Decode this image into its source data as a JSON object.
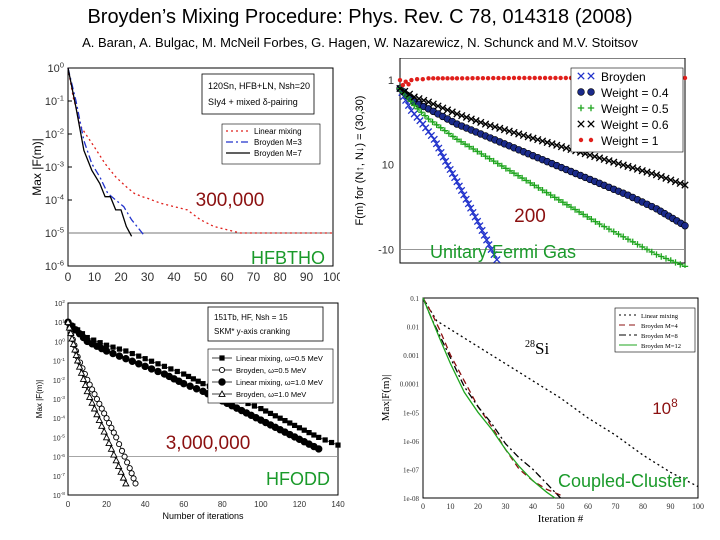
{
  "header": {
    "title": "Broyden’s Mixing Procedure: Phys. Rev. C 78, 014318 (2008)",
    "authors": "A. Baran, A. Bulgac, M. McNeil Forbes, G. Hagen, W. Nazarewicz, N. Schunck and M.V. Stoitsov"
  },
  "colors": {
    "red": "#e0201c",
    "blue": "#2233cc",
    "green": "#1fa51f",
    "navy": "#1a2a8a",
    "dark_red": "#8b1010"
  },
  "chart_data": [
    {
      "id": "hfbtho",
      "type": "line",
      "code_label": "HFBTHO",
      "annotation": "300,000",
      "ylabel": "Max |F(m)|",
      "info_lines": [
        "120Sn, HFB+LN, Nsh=20",
        "SIy4 + mixed δ-pairing"
      ],
      "yscale": "log",
      "ylim_exp": [
        -6,
        0
      ],
      "y_tick_labels": [
        "10-6",
        "10-5",
        "10-4",
        "10-3",
        "10-2",
        "10-1",
        "100"
      ],
      "xlim": [
        0,
        100
      ],
      "x_tick_labels": [
        "0",
        "10",
        "20",
        "30",
        "40",
        "50",
        "60",
        "70",
        "80",
        "90",
        "100"
      ],
      "threshold_exp": -5,
      "series": [
        {
          "name": "Linear mixing",
          "style": "dotted",
          "color": "red",
          "x": [
            0,
            2,
            5,
            10,
            14,
            18,
            22,
            25,
            28,
            30,
            35,
            40,
            45,
            50,
            55,
            60,
            65,
            70,
            75,
            80,
            85,
            90,
            95,
            100
          ],
          "y_exp": [
            0,
            -0.9,
            -1.8,
            -2.4,
            -2.9,
            -3.3,
            -3.6,
            -3.8,
            -3.9,
            -3.95,
            -4.1,
            -4.2,
            -4.3,
            -4.6,
            -4.8,
            -4.9,
            -5.0,
            -5.0,
            -5.0,
            -5.0,
            -5.0,
            -5.0,
            -5.0,
            -5.0
          ]
        },
        {
          "name": "Broyden M=3",
          "style": "dashdot",
          "color": "blue",
          "x": [
            0,
            3,
            6,
            9,
            12,
            15,
            18,
            21,
            24,
            27,
            29
          ],
          "y_exp": [
            0,
            -1.0,
            -2.2,
            -2.9,
            -3.3,
            -3.8,
            -4.0,
            -4.2,
            -4.6,
            -4.9,
            -5.1
          ]
        },
        {
          "name": "Broyden M=7",
          "style": "solid",
          "color": "black",
          "x": [
            0,
            3,
            6,
            9,
            12,
            14,
            16,
            18,
            20,
            22,
            24
          ],
          "y_exp": [
            0,
            -1.2,
            -2.5,
            -3.1,
            -3.5,
            -3.9,
            -3.9,
            -4.3,
            -4.3,
            -4.8,
            -5.1
          ]
        }
      ]
    },
    {
      "id": "fermi",
      "type": "line",
      "code_label": "Unitary Fermi Gas",
      "annotation": "200",
      "ylabel": "F(m) for (N↑, N↓) = (30,30)",
      "yscale": "log",
      "ylim_exp": [
        -10.8,
        1.3
      ],
      "y_tick_labels": [
        "1",
        "10",
        "-10"
      ],
      "y_tick_exp": [
        0,
        -5,
        -10
      ],
      "xlim": [
        0,
        500
      ],
      "threshold_exp": -10,
      "series": [
        {
          "name": "Broyden",
          "marker": "x",
          "color": "blue",
          "x": [
            0,
            10,
            20,
            40,
            60,
            80,
            100,
            120,
            140,
            160,
            170
          ],
          "y_exp": [
            -0.5,
            -1.2,
            -1.8,
            -2.6,
            -3.5,
            -4.8,
            -6.0,
            -7.3,
            -8.6,
            -10.0,
            -10.6
          ]
        },
        {
          "name": "Weight = 0.4",
          "marker": "circle",
          "color": "navy",
          "x": [
            0,
            25,
            50,
            100,
            150,
            200,
            250,
            300,
            350,
            400,
            450,
            500
          ],
          "y_exp": [
            -0.5,
            -1.3,
            -1.7,
            -2.6,
            -3.3,
            -4.0,
            -4.7,
            -5.4,
            -6.1,
            -6.8,
            -7.6,
            -8.6
          ]
        },
        {
          "name": "Weight = 0.5",
          "marker": "plus",
          "color": "green",
          "x": [
            0,
            25,
            50,
            100,
            150,
            200,
            250,
            300,
            350,
            400,
            450,
            500
          ],
          "y_exp": [
            -0.5,
            -1.5,
            -2.3,
            -3.5,
            -4.5,
            -5.5,
            -6.5,
            -7.5,
            -8.5,
            -9.4,
            -10.3,
            -11.0
          ]
        },
        {
          "name": "Weight = 0.6",
          "marker": "x",
          "color": "black",
          "x": [
            0,
            25,
            50,
            100,
            150,
            200,
            250,
            300,
            350,
            400,
            450,
            500
          ],
          "y_exp": [
            -0.5,
            -1.0,
            -1.3,
            -2.0,
            -2.6,
            -3.1,
            -3.6,
            -4.1,
            -4.6,
            -5.1,
            -5.6,
            -6.2
          ]
        },
        {
          "name": "Weight = 1",
          "marker": "dot",
          "color": "red",
          "x": [
            0,
            5,
            10,
            15,
            20,
            30,
            40,
            50,
            100,
            200,
            300,
            400,
            500
          ],
          "y_exp": [
            0,
            -0.3,
            -0.1,
            -0.25,
            0,
            0.05,
            0.05,
            0.1,
            0.1,
            0.12,
            0.12,
            0.12,
            0.12
          ]
        }
      ]
    },
    {
      "id": "hfodd",
      "type": "line",
      "code_label": "HFODD",
      "annotation": "3,000,000",
      "ylabel": "Max |F(m)|",
      "xlabel": "Number of iterations",
      "info_lines": [
        "151Tb, HF, Nsh = 15",
        "SKM* y-axis cranking"
      ],
      "yscale": "log",
      "ylim_exp": [
        -8,
        2
      ],
      "y_tick_labels": [
        "10-8",
        "10-7",
        "10-6",
        "10-5",
        "10-4",
        "10-3",
        "10-2",
        "10-1",
        "100",
        "101",
        "102"
      ],
      "xlim": [
        0,
        140
      ],
      "x_tick_labels": [
        "0",
        "20",
        "40",
        "60",
        "80",
        "100",
        "120",
        "140"
      ],
      "threshold_exp": -6,
      "series": [
        {
          "name": "Linear mixing, ω=0.5 MeV",
          "marker": "filled-square",
          "color": "black",
          "x": [
            0,
            10,
            20,
            30,
            40,
            50,
            60,
            70,
            80,
            90,
            100,
            110,
            120,
            130,
            140
          ],
          "y_exp": [
            1.0,
            0.2,
            -0.2,
            -0.5,
            -0.9,
            -1.3,
            -1.7,
            -2.2,
            -2.6,
            -3.1,
            -3.5,
            -4.0,
            -4.5,
            -5.0,
            -5.4
          ]
        },
        {
          "name": "Broyden, ω=0.5 MeV",
          "marker": "open-circle",
          "color": "black",
          "x": [
            0,
            5,
            10,
            15,
            20,
            25,
            28,
            32,
            35
          ],
          "y_exp": [
            1.0,
            -0.8,
            -2.0,
            -3.0,
            -4.0,
            -5.0,
            -5.7,
            -6.6,
            -7.4
          ]
        },
        {
          "name": "Linear mixing, ω=1.0 MeV",
          "marker": "filled-circle",
          "color": "black",
          "x": [
            0,
            10,
            20,
            30,
            40,
            50,
            60,
            70,
            80,
            90,
            100,
            110,
            120,
            130
          ],
          "y_exp": [
            1.0,
            0.0,
            -0.5,
            -0.9,
            -1.3,
            -1.7,
            -2.2,
            -2.6,
            -3.1,
            -3.6,
            -4.1,
            -4.6,
            -5.1,
            -5.6
          ]
        },
        {
          "name": "Broyden, ω=1.0 MeV",
          "marker": "open-triangle",
          "color": "black",
          "x": [
            0,
            5,
            10,
            15,
            20,
            25,
            30
          ],
          "y_exp": [
            1.0,
            -1.0,
            -2.6,
            -3.8,
            -5.0,
            -6.2,
            -7.4
          ]
        }
      ]
    },
    {
      "id": "cc",
      "type": "line",
      "code_label": "Coupled-Cluster",
      "annotation": "108",
      "nucleus": "28Si",
      "ylabel": "Max|F(m)|",
      "xlabel": "Iteration #",
      "yscale": "log",
      "ylim_exp": [
        -8,
        -1
      ],
      "y_tick_labels": [
        "0.1",
        "0.01",
        "0.001",
        "0.0001",
        "1e-05",
        "1e-06",
        "1e-07",
        "1e-08"
      ],
      "xlim": [
        0,
        100
      ],
      "x_tick_labels": [
        "0",
        "10",
        "20",
        "30",
        "40",
        "50",
        "60",
        "70",
        "80",
        "90",
        "100"
      ],
      "series": [
        {
          "name": "Linear mixing",
          "style": "dotted",
          "color": "black",
          "x": [
            0,
            5,
            10,
            20,
            30,
            40,
            50,
            60,
            70,
            80,
            90,
            100
          ],
          "y_exp": [
            -1.0,
            -1.8,
            -2.1,
            -2.7,
            -3.3,
            -3.9,
            -4.5,
            -5.2,
            -5.8,
            -6.5,
            -7.1,
            -7.6
          ]
        },
        {
          "name": "Broyden M=4",
          "style": "dashed",
          "color": "dark_red",
          "x": [
            0,
            3,
            6,
            10,
            15,
            20,
            25,
            30,
            35,
            40,
            45,
            50
          ],
          "y_exp": [
            -1.0,
            -1.5,
            -2.1,
            -3.0,
            -3.9,
            -4.8,
            -5.5,
            -6.3,
            -7.0,
            -7.4,
            -7.7,
            -7.9
          ]
        },
        {
          "name": "Broyden M=8",
          "style": "dashdot",
          "color": "black",
          "x": [
            0,
            3,
            6,
            10,
            15,
            20,
            25,
            30,
            35,
            40,
            45,
            50
          ],
          "y_exp": [
            -1.0,
            -1.7,
            -2.3,
            -3.1,
            -4.1,
            -4.8,
            -5.4,
            -6.1,
            -6.6,
            -7.0,
            -7.5,
            -8.0
          ]
        },
        {
          "name": "Broyden M=12",
          "style": "solid",
          "color": "green",
          "x": [
            0,
            3,
            6,
            10,
            15,
            20,
            25,
            30,
            35,
            40,
            45,
            48
          ],
          "y_exp": [
            -1.0,
            -1.7,
            -2.4,
            -3.3,
            -4.3,
            -5.0,
            -5.6,
            -6.3,
            -6.9,
            -7.4,
            -7.8,
            -8.0
          ]
        }
      ]
    }
  ]
}
